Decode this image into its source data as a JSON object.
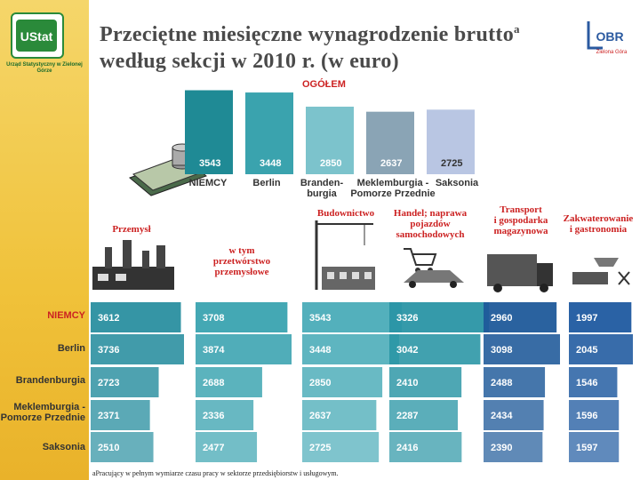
{
  "header": {
    "title_line1": "Przeciętne miesięczne wynagrodzenie brutto",
    "title_sup": "a",
    "title_line2": "według sekcji w 2010 r. (w euro)",
    "logo_left": "UStat",
    "logo_left_caption": "Urząd Statystyczny w Zielonej Górze",
    "logo_right": "OBR",
    "logo_right_caption": "Zielona Góra"
  },
  "footnote": "aPracujący w pełnym wymiarze czasu pracy w sektorze przedsiębiorstw i usługowym.",
  "colors": {
    "sidebar": "#f0c23a",
    "ogolem_bars": [
      "#1f8a95",
      "#3aa3ae",
      "#7cc3cc",
      "#8aa4b5",
      "#b9c6e3"
    ],
    "section_bars": [
      "#2a8fa0",
      "#3aa3b0",
      "#4aacb8",
      "#2a95a5",
      "#1f5a9a",
      "#1f5aa0"
    ],
    "accent_red": "#cc2222"
  },
  "chart_data": [
    {
      "type": "bar",
      "title": "OGÓŁEM",
      "categories": [
        "NIEMCY",
        "Berlin",
        "Brandenburgia",
        "Meklemburgia - Pomorze Przednie",
        "Saksonia"
      ],
      "category_labels": [
        "NIEMCY",
        "Berlin",
        "Branden-\nburgia",
        "Meklemburgia -\nPomorze Przednie",
        "Saksonia"
      ],
      "values": [
        3543,
        3448,
        2850,
        2637,
        2725
      ],
      "ylim": [
        0,
        3600
      ]
    },
    {
      "type": "bar",
      "orientation": "horizontal",
      "sections": [
        "Przemysł",
        "w tym przetwórstwo przemysłowe",
        "Budownictwo",
        "Handel; naprawa pojazdów samochodowych",
        "Transport i gospodarka magazynowa",
        "Zakwaterowanie i gastronomia"
      ],
      "section_labels": [
        "Przemysł",
        "w tym\nprzetwórstwo\nprzemysłowe",
        "Budownictwo",
        "Handel; naprawa\npojazdów\nsamochodowych",
        "Transport\ni gospodarka\nmagazynowa",
        "Zakwaterowanie\ni gastronomia"
      ],
      "regions": [
        "NIEMCY",
        "Berlin",
        "Brandenburgia",
        "Meklemburgia - Pomorze Przednie",
        "Saksonia"
      ],
      "region_labels": [
        "NIEMCY",
        "Berlin",
        "Brandenburgia",
        "Meklemburgia -\nPomorze Przednie",
        "Saksonia"
      ],
      "values": [
        [
          3612,
          3708,
          3543,
          3326,
          2960,
          1997
        ],
        [
          3736,
          3874,
          3448,
          3042,
          3098,
          2045
        ],
        [
          2723,
          2688,
          2850,
          2410,
          2488,
          1546
        ],
        [
          2371,
          2336,
          2637,
          2287,
          2434,
          1596
        ],
        [
          2510,
          2477,
          2725,
          2416,
          2390,
          1597
        ]
      ],
      "xlim": [
        0,
        3900
      ]
    }
  ]
}
